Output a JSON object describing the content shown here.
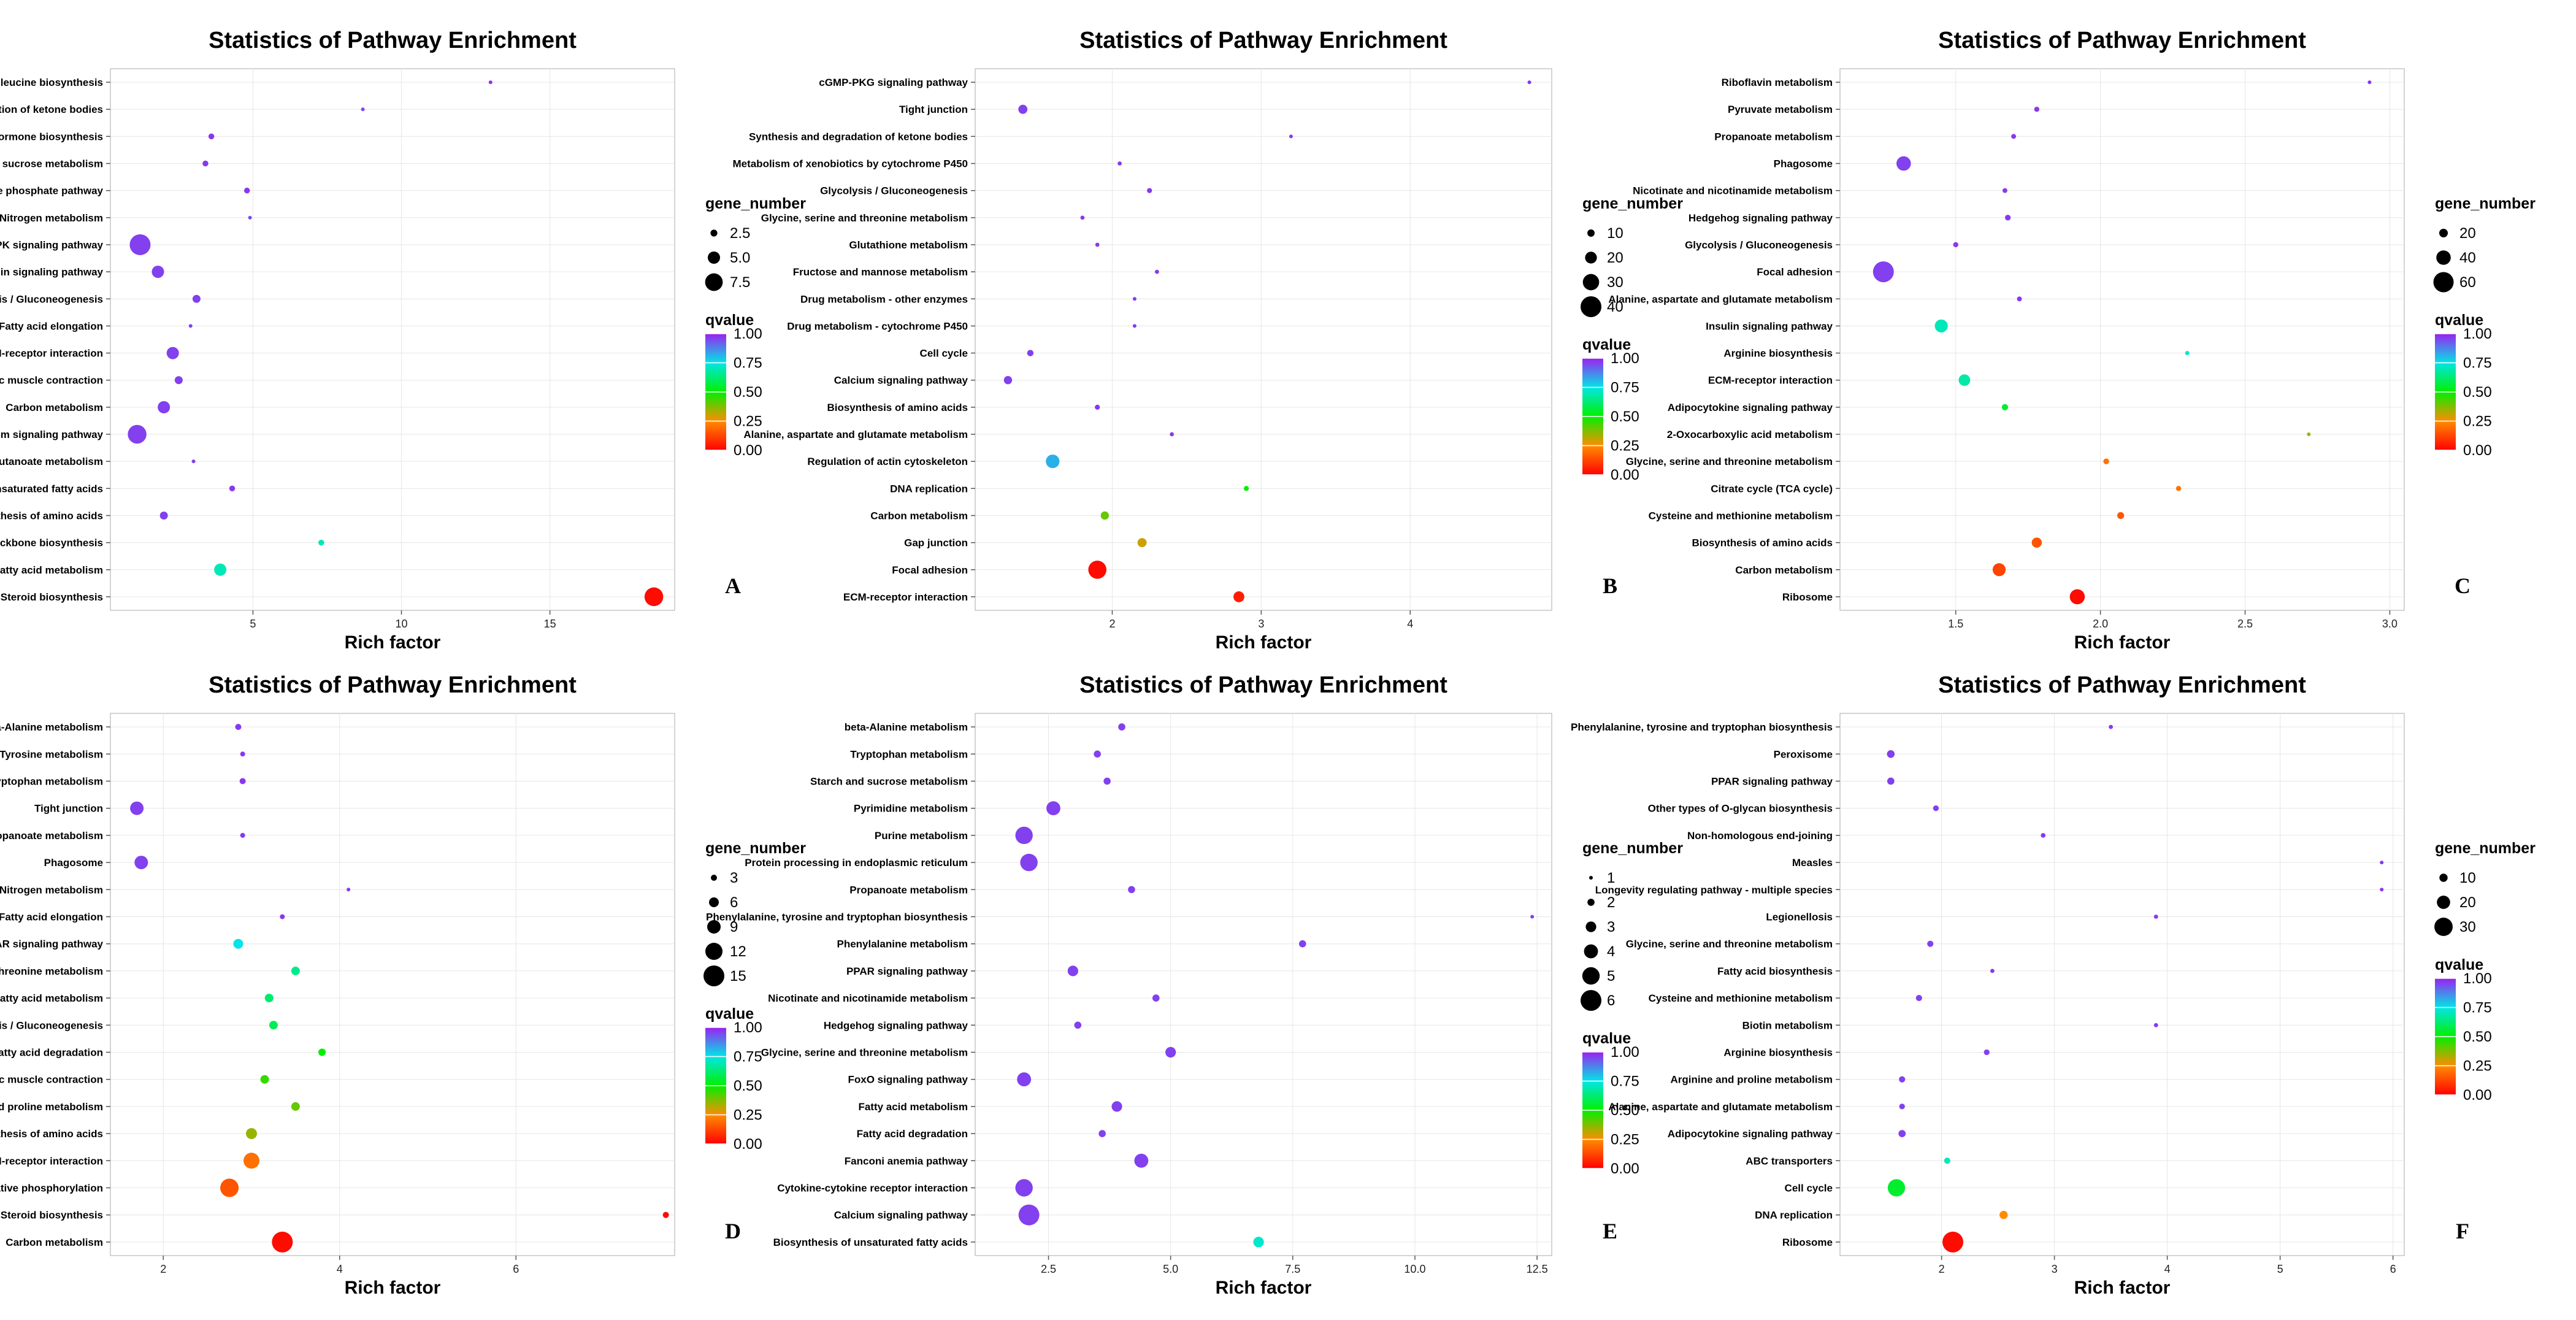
{
  "chart_data": [
    {
      "type": "scatter",
      "panel_label": "A",
      "title": "Statistics of Pathway Enrichment",
      "xlabel": "Rich factor",
      "xlim": [
        0.2,
        19.2
      ],
      "xticks": [
        5,
        10,
        15
      ],
      "xtick_labels": [
        "5",
        "10",
        "15"
      ],
      "size_legend": {
        "title": "gene_number",
        "values": [
          2.5,
          5.0,
          7.5
        ],
        "labels": [
          "2.5",
          "5.0",
          "7.5"
        ]
      },
      "color_legend": {
        "title": "qvalue",
        "labels": [
          "1.00",
          "0.75",
          "0.50",
          "0.25",
          "0.00"
        ]
      },
      "categories": [
        "Valine, leucine and isoleucine biosynthesis",
        "Synthesis and degradation of ketone bodies",
        "Steroid hormone biosynthesis",
        "Starch and sucrose metabolism",
        "Pentose phosphate pathway",
        "Nitrogen metabolism",
        "MAPK signaling pathway",
        "Insulin signaling pathway",
        "Glycolysis / Gluconeogenesis",
        "Fatty acid elongation",
        "ECM-receptor interaction",
        "Cardiac muscle contraction",
        "Carbon metabolism",
        "Calcium signaling pathway",
        "Butanoate metabolism",
        "Biosynthesis of unsaturated fatty acids",
        "Biosynthesis of amino acids",
        "Terpenoid backbone biosynthesis",
        "Fatty acid metabolism",
        "Steroid biosynthesis"
      ],
      "x": [
        13.0,
        8.7,
        3.6,
        3.4,
        4.8,
        4.9,
        1.2,
        1.8,
        3.1,
        2.9,
        2.3,
        2.5,
        2.0,
        1.1,
        3.0,
        4.3,
        2.0,
        7.3,
        3.9,
        18.5
      ],
      "gene_number": [
        1,
        1,
        2,
        2,
        2,
        1,
        9,
        5,
        3,
        1,
        5,
        3,
        5,
        8,
        1,
        2,
        3,
        2,
        5,
        8
      ],
      "qvalue": [
        0.98,
        0.95,
        0.97,
        0.97,
        0.97,
        0.95,
        0.96,
        0.96,
        0.96,
        0.96,
        0.96,
        0.96,
        0.96,
        0.96,
        0.96,
        0.97,
        0.96,
        0.7,
        0.7,
        0.02
      ]
    },
    {
      "type": "scatter",
      "panel_label": "B",
      "title": "Statistics of Pathway Enrichment",
      "xlabel": "Rich factor",
      "xlim": [
        1.08,
        4.95
      ],
      "xticks": [
        2,
        3,
        4
      ],
      "xtick_labels": [
        "2",
        "3",
        "4"
      ],
      "size_legend": {
        "title": "gene_number",
        "values": [
          10,
          20,
          30,
          40
        ],
        "labels": [
          "10",
          "20",
          "30",
          "40"
        ]
      },
      "color_legend": {
        "title": "qvalue",
        "labels": [
          "1.00",
          "0.75",
          "0.50",
          "0.25",
          "0.00"
        ]
      },
      "categories": [
        "cGMP-PKG signaling pathway",
        "Tight junction",
        "Synthesis and degradation of ketone bodies",
        "Metabolism of xenobiotics by cytochrome P450",
        "Glycolysis / Gluconeogenesis",
        "Glycine, serine and threonine metabolism",
        "Glutathione metabolism",
        "Fructose and mannose metabolism",
        "Drug metabolism - other enzymes",
        "Drug metabolism - cytochrome P450",
        "Cell cycle",
        "Calcium signaling pathway",
        "Biosynthesis of amino acids",
        "Alanine, aspartate and glutamate metabolism",
        "Regulation of actin cytoskeleton",
        "DNA replication",
        "Carbon metabolism",
        "Gap junction",
        "Focal adhesion",
        "ECM-receptor interaction"
      ],
      "x": [
        4.8,
        1.4,
        3.2,
        2.05,
        2.25,
        1.8,
        1.9,
        2.3,
        2.15,
        2.15,
        1.45,
        1.3,
        1.9,
        2.4,
        1.6,
        2.9,
        1.95,
        2.2,
        1.9,
        2.85
      ],
      "gene_number": [
        2,
        14,
        2,
        3,
        5,
        3,
        3,
        3,
        2,
        2,
        8,
        12,
        5,
        3,
        24,
        5,
        12,
        14,
        34,
        18
      ],
      "qvalue": [
        0.97,
        0.96,
        0.97,
        0.97,
        0.97,
        0.97,
        0.97,
        0.97,
        0.97,
        0.97,
        0.96,
        0.96,
        0.97,
        0.97,
        0.82,
        0.5,
        0.4,
        0.3,
        0.02,
        0.05
      ]
    },
    {
      "type": "scatter",
      "panel_label": "C",
      "title": "Statistics of Pathway Enrichment",
      "xlabel": "Rich factor",
      "xlim": [
        1.1,
        3.05
      ],
      "xticks": [
        1.5,
        2.0,
        2.5,
        3.0
      ],
      "xtick_labels": [
        "1.5",
        "2.0",
        "2.5",
        "3.0"
      ],
      "size_legend": {
        "title": "gene_number",
        "values": [
          20,
          40,
          60
        ],
        "labels": [
          "20",
          "40",
          "60"
        ]
      },
      "color_legend": {
        "title": "qvalue",
        "labels": [
          "1.00",
          "0.75",
          "0.50",
          "0.25",
          "0.00"
        ]
      },
      "categories": [
        "Riboflavin metabolism",
        "Pyruvate metabolism",
        "Propanoate metabolism",
        "Phagosome",
        "Nicotinate and nicotinamide metabolism",
        "Hedgehog signaling pathway",
        "Glycolysis / Gluconeogenesis",
        "Focal adhesion",
        "Alanine, aspartate and glutamate metabolism",
        "Insulin signaling pathway",
        "Arginine biosynthesis",
        "ECM-receptor interaction",
        "Adipocytokine signaling pathway",
        "2-Oxocarboxylic acid metabolism",
        "Glycine, serine and threonine metabolism",
        "Citrate cycle (TCA cycle)",
        "Cysteine and methionine metabolism",
        "Biosynthesis of amino acids",
        "Carbon metabolism",
        "Ribosome"
      ],
      "x": [
        2.93,
        1.78,
        1.7,
        1.32,
        1.67,
        1.68,
        1.5,
        1.25,
        1.72,
        1.45,
        2.3,
        1.53,
        1.67,
        2.72,
        2.02,
        2.27,
        2.07,
        1.78,
        1.65,
        1.92
      ],
      "gene_number": [
        3,
        8,
        7,
        40,
        7,
        10,
        8,
        62,
        7,
        35,
        5,
        30,
        12,
        3,
        10,
        8,
        14,
        25,
        35,
        42
      ],
      "qvalue": [
        0.97,
        0.97,
        0.97,
        0.96,
        0.97,
        0.97,
        0.97,
        0.96,
        0.97,
        0.7,
        0.72,
        0.68,
        0.55,
        0.35,
        0.2,
        0.2,
        0.15,
        0.15,
        0.12,
        0.02
      ]
    },
    {
      "type": "scatter",
      "panel_label": "D",
      "title": "Statistics of Pathway Enrichment",
      "xlabel": "Rich factor",
      "xlim": [
        1.4,
        7.8
      ],
      "xticks": [
        2,
        4,
        6
      ],
      "xtick_labels": [
        "2",
        "4",
        "6"
      ],
      "size_legend": {
        "title": "gene_number",
        "values": [
          3,
          6,
          9,
          12,
          15
        ],
        "labels": [
          "3",
          "6",
          "9",
          "12",
          "15"
        ]
      },
      "color_legend": {
        "title": "qvalue",
        "labels": [
          "1.00",
          "0.75",
          "0.50",
          "0.25",
          "0.00"
        ]
      },
      "categories": [
        "beta-Alanine metabolism",
        "Tyrosine metabolism",
        "Tryptophan metabolism",
        "Tight junction",
        "Propanoate metabolism",
        "Phagosome",
        "Nitrogen metabolism",
        "Fatty acid elongation",
        "PPAR signaling pathway",
        "Glycine, serine and threonine metabolism",
        "Fatty acid metabolism",
        "Glycolysis / Gluconeogenesis",
        "Fatty acid degradation",
        "Cardiac muscle contraction",
        "Arginine and proline metabolism",
        "Biosynthesis of amino acids",
        "ECM-receptor interaction",
        "Oxidative phosphorylation",
        "Steroid biosynthesis",
        "Carbon metabolism"
      ],
      "x": [
        2.85,
        2.9,
        2.9,
        1.7,
        2.9,
        1.75,
        4.1,
        3.35,
        2.85,
        3.5,
        3.2,
        3.25,
        3.8,
        3.15,
        3.5,
        3.0,
        3.0,
        2.75,
        7.7,
        3.35
      ],
      "gene_number": [
        3,
        2,
        3,
        9,
        2,
        9,
        1,
        2,
        6,
        5,
        5,
        5,
        4,
        5,
        5,
        7,
        11,
        13,
        3,
        15
      ],
      "qvalue": [
        0.97,
        0.97,
        0.97,
        0.96,
        0.97,
        0.96,
        0.97,
        0.97,
        0.75,
        0.65,
        0.62,
        0.6,
        0.5,
        0.45,
        0.4,
        0.35,
        0.2,
        0.15,
        0.02,
        0.02
      ]
    },
    {
      "type": "scatter",
      "panel_label": "E",
      "title": "Statistics of Pathway Enrichment",
      "xlabel": "Rich factor",
      "xlim": [
        1.0,
        12.8
      ],
      "xticks": [
        2.5,
        5.0,
        7.5,
        10.0,
        12.5
      ],
      "xtick_labels": [
        "2.5",
        "5.0",
        "7.5",
        "10.0",
        "12.5"
      ],
      "size_legend": {
        "title": "gene_number",
        "values": [
          1,
          2,
          3,
          4,
          5,
          6
        ],
        "labels": [
          "1",
          "2",
          "3",
          "4",
          "5",
          "6"
        ]
      },
      "color_legend": {
        "title": "qvalue",
        "labels": [
          "1.00",
          "0.75",
          "0.50",
          "0.25",
          "0.00"
        ]
      },
      "categories": [
        "beta-Alanine metabolism",
        "Tryptophan metabolism",
        "Starch and sucrose metabolism",
        "Pyrimidine metabolism",
        "Purine metabolism",
        "Protein processing in endoplasmic reticulum",
        "Propanoate metabolism",
        "Phenylalanine, tyrosine and tryptophan biosynthesis",
        "Phenylalanine metabolism",
        "PPAR signaling pathway",
        "Nicotinate and nicotinamide metabolism",
        "Hedgehog signaling pathway",
        "Glycine, serine and threonine metabolism",
        "FoxO signaling pathway",
        "Fatty acid metabolism",
        "Fatty acid degradation",
        "Fanconi anemia pathway",
        "Cytokine-cytokine receptor interaction",
        "Calcium signaling pathway",
        "Biosynthesis of unsaturated fatty acids"
      ],
      "x": [
        4.0,
        3.5,
        3.7,
        2.6,
        2.0,
        2.1,
        4.2,
        12.4,
        7.7,
        3.0,
        4.7,
        3.1,
        5.0,
        2.0,
        3.9,
        3.6,
        4.4,
        2.0,
        2.1,
        6.8
      ],
      "gene_number": [
        2,
        2,
        2,
        4,
        5,
        5,
        2,
        1,
        2,
        3,
        2,
        2,
        3,
        4,
        3,
        2,
        4,
        5,
        6,
        3
      ],
      "qvalue": [
        0.96,
        0.96,
        0.96,
        0.96,
        0.96,
        0.96,
        0.96,
        0.96,
        0.96,
        0.96,
        0.96,
        0.96,
        0.96,
        0.96,
        0.96,
        0.96,
        0.96,
        0.96,
        0.96,
        0.72
      ]
    },
    {
      "type": "scatter",
      "panel_label": "F",
      "title": "Statistics of Pathway Enrichment",
      "xlabel": "Rich factor",
      "xlim": [
        1.1,
        6.1
      ],
      "xticks": [
        2,
        3,
        4,
        5,
        6
      ],
      "xtick_labels": [
        "2",
        "3",
        "4",
        "5",
        "6"
      ],
      "size_legend": {
        "title": "gene_number",
        "values": [
          10,
          20,
          30
        ],
        "labels": [
          "10",
          "20",
          "30"
        ]
      },
      "color_legend": {
        "title": "qvalue",
        "labels": [
          "1.00",
          "0.75",
          "0.50",
          "0.25",
          "0.00"
        ]
      },
      "categories": [
        "Phenylalanine, tyrosine and tryptophan biosynthesis",
        "Peroxisome",
        "PPAR signaling pathway",
        "Other types of O-glycan biosynthesis",
        "Non-homologous end-joining",
        "Measles",
        "Longevity regulating pathway - multiple species",
        "Legionellosis",
        "Glycine, serine and threonine metabolism",
        "Fatty acid biosynthesis",
        "Cysteine and methionine metabolism",
        "Biotin metabolism",
        "Arginine biosynthesis",
        "Arginine and proline metabolism",
        "Alanine, aspartate and glutamate metabolism",
        "Adipocytokine signaling pathway",
        "ABC transporters",
        "Cell cycle",
        "DNA replication",
        "Ribosome"
      ],
      "x": [
        3.5,
        1.55,
        1.55,
        1.95,
        2.9,
        5.9,
        5.9,
        3.9,
        1.9,
        2.45,
        1.8,
        3.9,
        2.4,
        1.65,
        1.65,
        1.65,
        2.05,
        1.6,
        2.55,
        2.1
      ],
      "gene_number": [
        2,
        9,
        8,
        5,
        3,
        1,
        1,
        2,
        6,
        2,
        6,
        2,
        5,
        6,
        5,
        8,
        6,
        28,
        10,
        35
      ],
      "qvalue": [
        0.97,
        0.96,
        0.96,
        0.96,
        0.97,
        0.97,
        0.97,
        0.97,
        0.96,
        0.97,
        0.96,
        0.97,
        0.96,
        0.96,
        0.96,
        0.96,
        0.7,
        0.55,
        0.25,
        0.02
      ]
    }
  ]
}
